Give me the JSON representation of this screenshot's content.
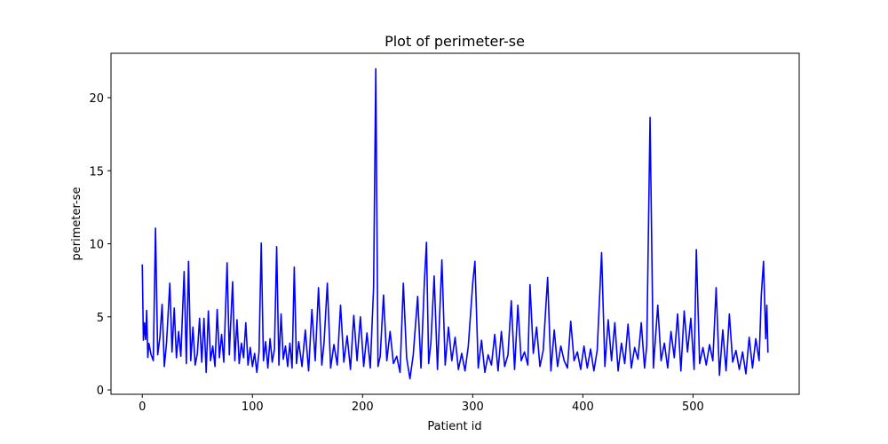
{
  "chart_data": {
    "type": "line",
    "title": "Plot of perimeter-se",
    "x_label": "Patient id",
    "y_label": "perimeter-se",
    "x": [
      0,
      1,
      2,
      3,
      4,
      5,
      6,
      8,
      10,
      12,
      14,
      16,
      18,
      20,
      22,
      25,
      27,
      29,
      31,
      33,
      35,
      38,
      40,
      42,
      44,
      46,
      48,
      50,
      52,
      54,
      56,
      58,
      60,
      62,
      64,
      66,
      68,
      70,
      72,
      74,
      77,
      79,
      82,
      84,
      86,
      88,
      90,
      92,
      94,
      96,
      98,
      100,
      102,
      104,
      106,
      108,
      110,
      112,
      114,
      116,
      118,
      120,
      122,
      124,
      126,
      128,
      130,
      132,
      134,
      136,
      138,
      140,
      142,
      145,
      148,
      151,
      154,
      157,
      160,
      163,
      165,
      168,
      171,
      174,
      177,
      180,
      183,
      186,
      189,
      192,
      195,
      198,
      201,
      204,
      207,
      210,
      212,
      214,
      216,
      219,
      222,
      225,
      228,
      231,
      234,
      237,
      240,
      243,
      246,
      250,
      253,
      256,
      258,
      260,
      262,
      265,
      268,
      272,
      275,
      278,
      281,
      284,
      287,
      290,
      293,
      296,
      300,
      302,
      305,
      308,
      311,
      314,
      317,
      320,
      323,
      326,
      329,
      332,
      335,
      338,
      341,
      344,
      347,
      350,
      352,
      355,
      358,
      361,
      364,
      368,
      371,
      374,
      377,
      380,
      383,
      386,
      389,
      392,
      395,
      398,
      401,
      404,
      407,
      410,
      413,
      417,
      420,
      423,
      426,
      429,
      432,
      435,
      438,
      441,
      444,
      447,
      450,
      453,
      456,
      458,
      461,
      464,
      468,
      471,
      474,
      477,
      480,
      483,
      486,
      489,
      492,
      495,
      498,
      501,
      503,
      506,
      509,
      512,
      515,
      518,
      521,
      524,
      527,
      530,
      533,
      536,
      539,
      542,
      545,
      548,
      551,
      554,
      557,
      560,
      562,
      564,
      566,
      567,
      568
    ],
    "series": [
      {
        "name": "perimeter-se",
        "color": "#0000ff",
        "values": [
          8.59,
          3.4,
          4.58,
          3.45,
          5.44,
          2.22,
          3.18,
          2.41,
          2.0,
          11.07,
          2.4,
          3.6,
          5.85,
          1.6,
          3.2,
          7.3,
          2.6,
          5.6,
          2.2,
          4.0,
          2.3,
          8.1,
          1.8,
          8.8,
          2.0,
          4.3,
          1.7,
          2.5,
          4.9,
          1.9,
          4.9,
          1.2,
          5.4,
          2.0,
          3.0,
          1.6,
          5.5,
          2.2,
          3.8,
          1.9,
          8.7,
          2.4,
          7.4,
          2.0,
          4.8,
          1.8,
          3.2,
          2.2,
          4.6,
          1.7,
          2.9,
          1.6,
          2.5,
          1.2,
          2.6,
          10.05,
          2.0,
          3.3,
          1.5,
          3.5,
          1.9,
          2.8,
          9.8,
          1.7,
          5.2,
          2.1,
          3.0,
          1.6,
          3.2,
          1.5,
          8.4,
          1.8,
          3.3,
          1.6,
          4.1,
          1.3,
          5.5,
          2.0,
          7.0,
          1.7,
          3.2,
          7.3,
          1.5,
          3.1,
          1.7,
          5.8,
          1.9,
          3.7,
          1.4,
          5.1,
          2.0,
          5.0,
          1.6,
          3.9,
          1.5,
          7.0,
          21.98,
          1.6,
          2.3,
          6.5,
          2.0,
          4.0,
          1.8,
          2.3,
          1.2,
          7.3,
          2.2,
          0.76,
          2.4,
          6.4,
          1.5,
          7.2,
          10.1,
          1.8,
          3.2,
          7.8,
          1.4,
          8.9,
          1.7,
          4.3,
          2.0,
          3.6,
          1.4,
          2.5,
          1.3,
          3.0,
          7.3,
          8.8,
          1.5,
          3.4,
          1.2,
          2.4,
          1.7,
          3.8,
          1.3,
          4.0,
          1.6,
          2.4,
          6.1,
          1.4,
          5.8,
          2.0,
          2.6,
          1.7,
          7.2,
          2.5,
          4.3,
          1.6,
          2.7,
          7.7,
          1.3,
          4.1,
          1.6,
          3.0,
          2.0,
          1.5,
          4.7,
          2.0,
          2.6,
          1.4,
          3.0,
          1.5,
          2.8,
          1.3,
          2.7,
          9.4,
          1.6,
          4.8,
          2.0,
          4.6,
          1.3,
          3.2,
          1.8,
          4.5,
          1.5,
          2.9,
          2.1,
          4.6,
          1.5,
          3.0,
          18.65,
          1.5,
          5.8,
          2.0,
          3.2,
          1.5,
          4.0,
          2.2,
          5.2,
          1.3,
          5.4,
          2.6,
          4.9,
          1.4,
          9.6,
          1.8,
          2.9,
          1.7,
          3.1,
          2.0,
          7.0,
          1.0,
          4.1,
          1.3,
          5.2,
          1.9,
          2.7,
          1.4,
          2.6,
          1.1,
          3.6,
          1.5,
          3.5,
          2.0,
          6.5,
          8.8,
          3.5,
          5.8,
          2.55
        ]
      }
    ],
    "xlim": [
      -28.4,
      596.4
    ],
    "ylim": [
      -0.3,
      23.04
    ],
    "xticks": [
      0,
      100,
      200,
      300,
      400,
      500
    ],
    "yticks": [
      0,
      5,
      10,
      15,
      20
    ],
    "grid": false
  }
}
